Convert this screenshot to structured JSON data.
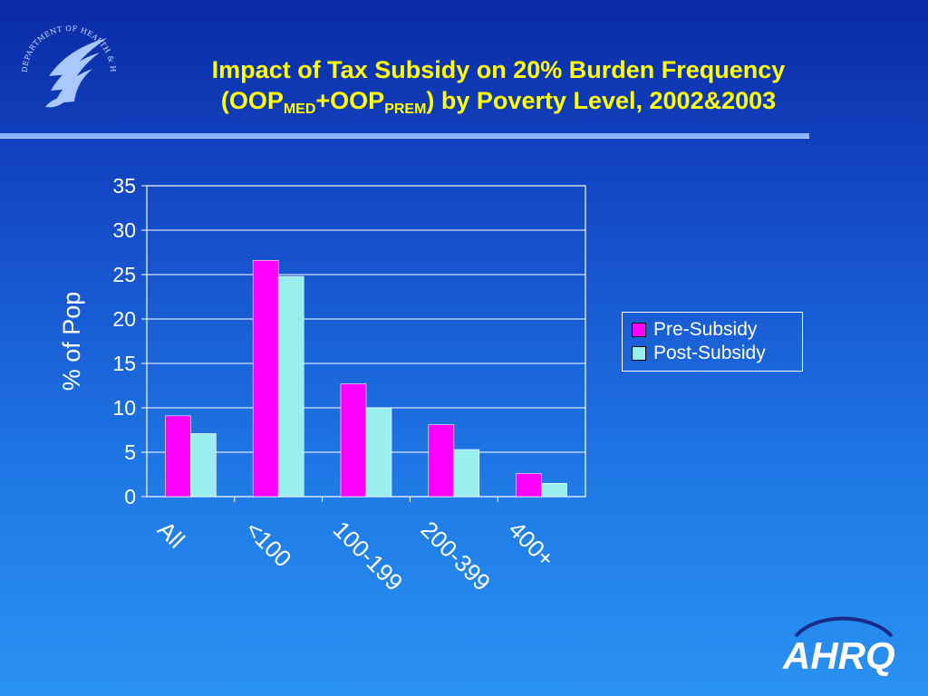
{
  "slide": {
    "title_parts": [
      "Impact of Tax Subsidy on 20% Burden Frequency",
      "(OOP",
      "MED",
      "+OOP",
      "PREM",
      ") by Poverty Level, 2002&2003"
    ]
  },
  "logos": {
    "hhs_text": "DEPARTMENT OF HEALTH & HUMAN SERVICES • USA",
    "ahrq_text": "AHRQ"
  },
  "colors": {
    "pre": "#ff00ff",
    "post": "#99eeee",
    "background": "#1650cc",
    "title": "#ffff00"
  },
  "chart_data": {
    "type": "bar",
    "title": "",
    "xlabel": "",
    "ylabel": "% of Pop",
    "ylim": [
      0,
      35
    ],
    "yticks": [
      0,
      5,
      10,
      15,
      20,
      25,
      30,
      35
    ],
    "categories": [
      "All",
      "<100",
      "100-199",
      "200-399",
      "400+"
    ],
    "series": [
      {
        "name": "Pre-Subsidy",
        "values": [
          9.1,
          26.6,
          12.7,
          8.1,
          2.6
        ]
      },
      {
        "name": "Post-Subsidy",
        "values": [
          7.1,
          24.8,
          10.0,
          5.3,
          1.5
        ]
      }
    ],
    "grid": true,
    "legend": "right"
  }
}
